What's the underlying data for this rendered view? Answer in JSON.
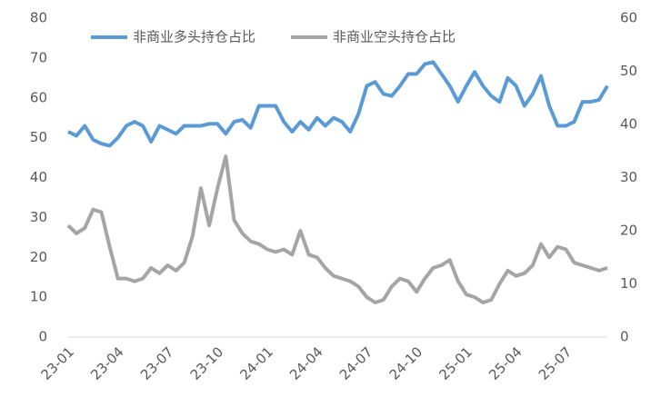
{
  "chart_data": {
    "type": "line",
    "categories": [
      "23-01",
      null,
      null,
      null,
      null,
      null,
      "23-04",
      null,
      null,
      null,
      null,
      null,
      "23-07",
      null,
      null,
      null,
      null,
      null,
      "23-10",
      null,
      null,
      null,
      null,
      null,
      "24-01",
      null,
      null,
      null,
      null,
      null,
      "24-04",
      null,
      null,
      null,
      null,
      null,
      "24-07",
      null,
      null,
      null,
      null,
      null,
      "24-10",
      null,
      null,
      null,
      null,
      null,
      "25-01",
      null,
      null,
      null,
      null,
      null,
      "25-04",
      null,
      null,
      null,
      null,
      null,
      "25-07",
      null,
      null,
      null,
      null,
      null
    ],
    "series": [
      {
        "name": "非商业多头持仓占比",
        "color": "#5b9bd5",
        "axis": "y",
        "values": [
          51.5,
          50.5,
          53,
          49.5,
          48.5,
          48,
          50,
          53,
          54,
          53,
          49,
          53,
          52,
          51,
          53,
          53,
          53,
          53.5,
          53.5,
          51,
          54,
          54.5,
          52.5,
          58,
          58,
          58,
          54,
          51.5,
          54,
          52,
          55,
          53,
          55,
          54,
          51.5,
          56,
          63,
          64,
          61,
          60.5,
          63,
          66,
          66,
          68.5,
          69,
          66,
          63,
          59,
          63,
          66.5,
          63,
          60.5,
          59,
          65,
          63,
          58,
          61,
          65.5,
          58,
          53,
          53,
          54,
          59,
          59,
          59.5,
          63
        ]
      },
      {
        "name": "非商业空头持仓占比",
        "color": "#a5a5a5",
        "axis": "y2",
        "values": [
          21,
          19.5,
          20.5,
          24,
          23.5,
          17,
          11,
          11,
          10.5,
          11,
          13,
          12,
          13.5,
          12.5,
          14,
          19,
          28,
          21,
          28,
          34,
          22,
          19.5,
          18,
          17.5,
          16.5,
          16,
          16.5,
          15.5,
          20,
          15.5,
          15,
          13,
          11.5,
          11,
          10.5,
          9.5,
          7.5,
          6.5,
          7,
          9.5,
          11,
          10.5,
          8.5,
          11,
          13,
          13.5,
          14.5,
          10.5,
          8,
          7.5,
          6.5,
          7,
          10,
          12.5,
          11.5,
          12,
          13.5,
          17.5,
          15,
          17,
          16.5,
          14,
          13.5,
          13,
          12.5,
          13
        ]
      }
    ],
    "ylim": [
      0,
      80
    ],
    "yticks": [
      0,
      10,
      20,
      30,
      40,
      50,
      60,
      70,
      80
    ],
    "y2lim": [
      0,
      60
    ],
    "y2ticks": [
      0,
      10,
      20,
      30,
      40,
      50,
      60
    ],
    "grid": false,
    "legend": "top"
  }
}
